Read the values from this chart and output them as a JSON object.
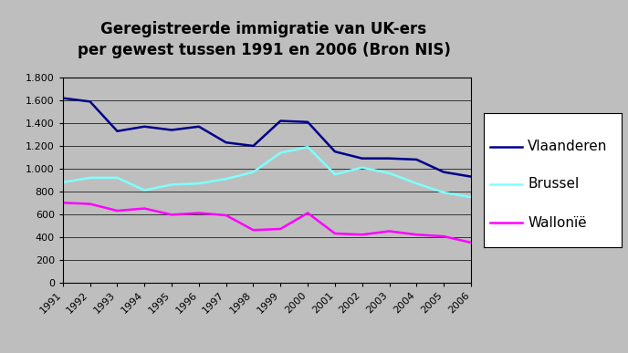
{
  "title_line1": "Geregistreerde immigratie van UK-ers",
  "title_line2": "per gewest tussen 1991 en 2006 (Bron NIS)",
  "years": [
    1991,
    1992,
    1993,
    1994,
    1995,
    1996,
    1997,
    1998,
    1999,
    2000,
    2001,
    2002,
    2003,
    2004,
    2005,
    2006
  ],
  "vlaanderen": [
    1620,
    1590,
    1330,
    1370,
    1340,
    1370,
    1230,
    1200,
    1420,
    1410,
    1150,
    1090,
    1090,
    1080,
    970,
    930
  ],
  "brussel": [
    880,
    920,
    920,
    810,
    860,
    870,
    910,
    970,
    1140,
    1190,
    950,
    1010,
    960,
    870,
    790,
    750
  ],
  "wallonie": [
    700,
    690,
    630,
    650,
    595,
    610,
    590,
    460,
    470,
    610,
    430,
    420,
    450,
    420,
    405,
    350
  ],
  "color_vlaanderen": "#00008B",
  "color_brussel": "#7FFFFF",
  "color_wallonie": "#FF00FF",
  "ylim": [
    0,
    1800
  ],
  "yticks": [
    0,
    200,
    400,
    600,
    800,
    1000,
    1200,
    1400,
    1600,
    1800
  ],
  "ytick_labels": [
    "0",
    "200",
    "400",
    "600",
    "800",
    "1.000",
    "1.200",
    "1.400",
    "1.600",
    "1.800"
  ],
  "plot_bg_color": "#BEBEBE",
  "outer_bg_color": "#BEBEBE",
  "legend_bg_color": "#F0F0F0",
  "legend_labels": [
    "Vlaanderen",
    "Brussel",
    "Wallonïë"
  ],
  "line_width": 1.8,
  "title_fontsize": 12,
  "tick_fontsize": 8,
  "legend_fontsize": 11
}
